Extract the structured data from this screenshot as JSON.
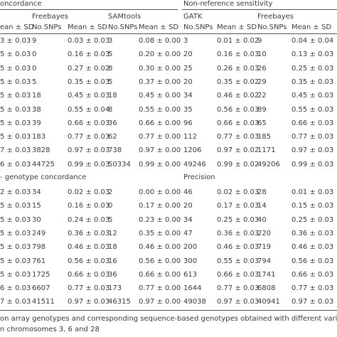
{
  "header": {
    "left_title": "oncordance",
    "right_title": "Non-reference sensitivity",
    "callers": [
      "Freebayes",
      "SAMtools",
      "GATK",
      "Freebayes"
    ],
    "columns": [
      "ean ± SD",
      "No.SNPs",
      "Mean ± SD",
      "No.SNPs",
      "Mean ± SD",
      "No.SNPs",
      "Mean ± SD",
      "No.SNPs",
      "Mean ± SD"
    ]
  },
  "sections": [
    {
      "left_title": null,
      "right_title": null,
      "rows": [
        [
          "3 ± 0.03",
          "9",
          "0.03 ± 0.03",
          "3",
          "0.08 ± 0.00",
          "3",
          "0.01 ± 0.02",
          "9",
          "0.04 ± 0.04"
        ],
        [
          "5 ± 0.03",
          "0",
          "0.16 ± 0.03",
          "5",
          "0.20 ± 0.00",
          "20",
          "0.16 ± 0.03",
          "10",
          "0.13 ± 0.03"
        ],
        [
          "5 ± 0.03",
          "0",
          "0.27 ± 0.02",
          "8",
          "0.30 ± 0.00",
          "25",
          "0.26 ± 0.03",
          "26",
          "0.25 ± 0.03"
        ],
        [
          "5 ± 0.03",
          "5",
          "0.35 ± 0.03",
          "5",
          "0.37 ± 0.00",
          "20",
          "0.35 ± 0.02",
          "29",
          "0.35 ± 0.03"
        ],
        [
          "5 ± 0.03",
          "18",
          "0.45 ± 0.03",
          "18",
          "0.45 ± 0.00",
          "34",
          "0.46 ± 0.02",
          "22",
          "0.45 ± 0.03"
        ],
        [
          "5 ± 0.03",
          "38",
          "0.55 ± 0.04",
          "8",
          "0.55 ± 0.00",
          "35",
          "0.56 ± 0.03",
          "89",
          "0.55 ± 0.03"
        ],
        [
          "5 ± 0.03",
          "39",
          "0.66 ± 0.03",
          "36",
          "0.66 ± 0.00",
          "96",
          "0.66 ± 0.03",
          "65",
          "0.66 ± 0.03"
        ],
        [
          "5 ± 0.03",
          "183",
          "0.77 ± 0.03",
          "62",
          "0.77 ± 0.00",
          "112",
          "0.77 ± 0.03",
          "185",
          "0.77 ± 0.03"
        ],
        [
          "7 ± 0.03",
          "3828",
          "0.97 ± 0.03",
          "738",
          "0.97 ± 0.00",
          "1206",
          "0.97 ± 0.02",
          "1171",
          "0.97 ± 0.03"
        ],
        [
          "6 ± 0.03",
          "44725",
          "0.99 ± 0.03",
          "50334",
          "0.99 ± 0.00",
          "49246",
          "0.99 ± 0.02",
          "49206",
          "0.99 ± 0.03"
        ]
      ]
    },
    {
      "left_title": "- genotype concordance",
      "right_title": "Precision",
      "rows": [
        [
          "2 ± 0.03",
          "34",
          "0.02 ± 0.03",
          "2",
          "0.00 ± 0.00",
          "46",
          "0.02 ± 0.03",
          "28",
          "0.01 ± 0.03"
        ],
        [
          "5 ± 0.03",
          "15",
          "0.16 ± 0.03",
          "0",
          "0.17 ± 0.00",
          "20",
          "0.17 ± 0.03",
          "14",
          "0.15 ± 0.03"
        ],
        [
          "5 ± 0.03",
          "30",
          "0.24 ± 0.03",
          "5",
          "0.23 ± 0.00",
          "34",
          "0.25 ± 0.03",
          "40",
          "0.25 ± 0.03"
        ],
        [
          "5 ± 0.03",
          "249",
          "0.36 ± 0.03",
          "12",
          "0.35 ± 0.00",
          "47",
          "0.36 ± 0.03",
          "220",
          "0.36 ± 0.03"
        ],
        [
          "5 ± 0.03",
          "798",
          "0.46 ± 0.03",
          "18",
          "0.46 ± 0.00",
          "200",
          "0.46 ± 0.03",
          "719",
          "0.46 ± 0.03"
        ],
        [
          "5 ± 0.03",
          "761",
          "0.56 ± 0.03",
          "16",
          "0.56 ± 0.00",
          "300",
          "0.55 ± 0.03",
          "794",
          "0.56 ± 0.03"
        ],
        [
          "5 ± 0.03",
          "1725",
          "0.66 ± 0.03",
          "36",
          "0.66 ± 0.00",
          "613",
          "0.66 ± 0.03",
          "1741",
          "0.66 ± 0.03"
        ],
        [
          "6 ± 0.03",
          "6607",
          "0.77 ± 0.03",
          "173",
          "0.77 ± 0.00",
          "1644",
          "0.77 ± 0.03",
          "6808",
          "0.77 ± 0.03"
        ],
        [
          "7 ± 0.03",
          "41511",
          "0.97 ± 0.03",
          "46315",
          "0.97 ± 0.00",
          "49038",
          "0.97 ± 0.03",
          "40941",
          "0.97 ± 0.03"
        ]
      ]
    }
  ],
  "caption": [
    "on array genotypes and corresponding sequence-based genotypes obtained with different variant callers at positions",
    "n chromosomes 3, 6 and 28"
  ]
}
